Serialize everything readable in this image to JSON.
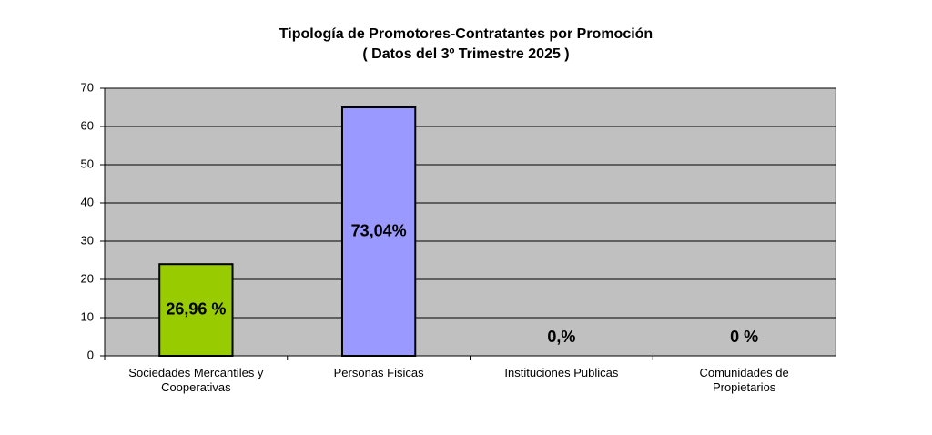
{
  "chart_data": {
    "type": "bar",
    "title": "Tipología de Promotores-Contratantes por Promoción",
    "subtitle": "( Datos del 3º Trimestre 2025 )",
    "categories": [
      "Sociedades Mercantiles y\nCooperativas",
      "Personas Fisicas",
      "Instituciones Publicas",
      "Comunidades de\nPropietarios"
    ],
    "values": [
      24,
      65,
      0,
      0
    ],
    "colors": [
      "#99cc00",
      "#9999ff",
      "#99cc00",
      "#9999ff"
    ],
    "annotations": [
      "26,96 %",
      "73,04%",
      "0,%",
      "0 %"
    ],
    "ylim": [
      0,
      70
    ],
    "yticks": [
      0,
      10,
      20,
      30,
      40,
      50,
      60,
      70
    ],
    "grid": true
  }
}
